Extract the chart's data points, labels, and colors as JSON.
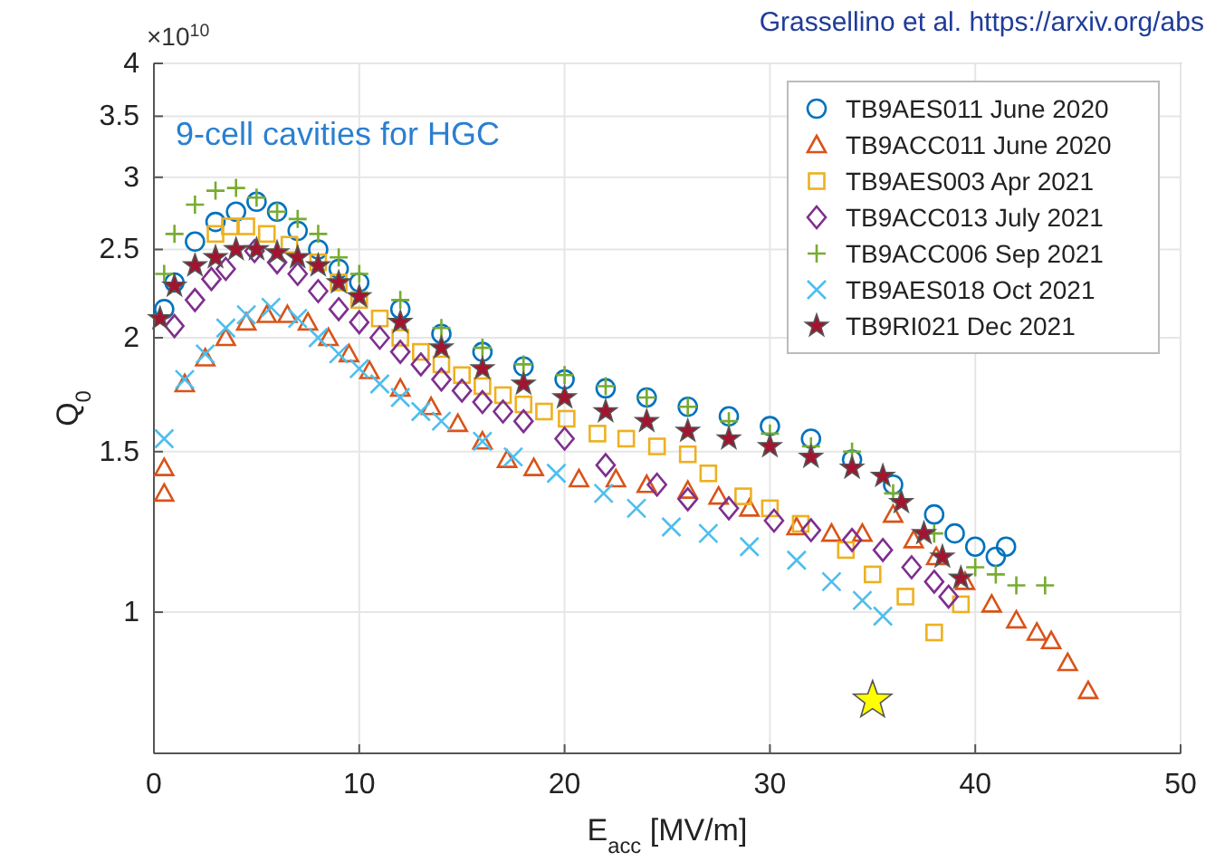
{
  "chart_data": {
    "type": "scatter",
    "xlabel": "E$_{acc}$ [MV/m]",
    "ylabel": "Q$_{0}$",
    "annotations": [
      "Grassellino et al. https://arxiv.org/abs",
      "9-cell cavities for HGC",
      "×10$^{10}$"
    ],
    "xlim": [
      0,
      50
    ],
    "xticks": [
      0,
      10,
      20,
      30,
      40,
      50
    ],
    "ylim": [
      0.7,
      4
    ],
    "yticks": [
      1,
      1.5,
      2,
      2.5,
      3,
      3.5,
      4
    ],
    "log": "y",
    "grid": true,
    "legend": "top right",
    "series": [
      {
        "name": "TB9AES011 June 2020",
        "color": "#0072bd",
        "marker": "circle",
        "x": [
          0.5,
          1,
          2,
          3,
          4,
          5,
          6,
          7,
          8,
          9,
          10,
          12,
          14,
          16,
          18,
          20,
          22,
          24,
          26,
          28,
          30,
          32,
          34,
          36,
          38,
          39,
          40,
          41,
          41.5
        ],
        "values": [
          2.15,
          2.3,
          2.55,
          2.68,
          2.75,
          2.82,
          2.75,
          2.62,
          2.5,
          2.38,
          2.3,
          2.15,
          2.02,
          1.93,
          1.86,
          1.8,
          1.76,
          1.72,
          1.68,
          1.64,
          1.6,
          1.55,
          1.47,
          1.38,
          1.28,
          1.22,
          1.18,
          1.15,
          1.18
        ]
      },
      {
        "name": "TB9ACC011 June 2020",
        "color": "#d95319",
        "marker": "triangle",
        "x": [
          0.5,
          0.5,
          1.5,
          2.5,
          3.5,
          4.5,
          5.5,
          6.5,
          7.5,
          8.5,
          9.5,
          10.5,
          12,
          13.5,
          14.8,
          16,
          17.2,
          18.5,
          20.7,
          22.5,
          24,
          26,
          27.5,
          29,
          31.3,
          33,
          34.5,
          36,
          37,
          38.1,
          39.5,
          40.8,
          42,
          43,
          43.7,
          44.5,
          45.5
        ],
        "values": [
          1.44,
          1.35,
          1.78,
          1.9,
          2,
          2.08,
          2.12,
          2.12,
          2.08,
          2,
          1.92,
          1.84,
          1.76,
          1.68,
          1.61,
          1.54,
          1.47,
          1.44,
          1.4,
          1.4,
          1.38,
          1.36,
          1.34,
          1.3,
          1.24,
          1.22,
          1.22,
          1.28,
          1.2,
          1.15,
          1.08,
          1.02,
          0.98,
          0.95,
          0.93,
          0.88,
          0.82
        ]
      },
      {
        "name": "TB9AES003 Apr 2021",
        "color": "#edb120",
        "marker": "square",
        "x": [
          3,
          3.7,
          4.5,
          5.5,
          6.6,
          8,
          9,
          10,
          11,
          12,
          13,
          14,
          15,
          16,
          17,
          18,
          19,
          20.1,
          21.6,
          23,
          24.5,
          26,
          27,
          28.7,
          30,
          31.5,
          33.7,
          35,
          36.6,
          38,
          39.3
        ],
        "values": [
          2.6,
          2.65,
          2.65,
          2.6,
          2.53,
          2.42,
          2.3,
          2.2,
          2.1,
          2,
          1.93,
          1.87,
          1.82,
          1.77,
          1.73,
          1.69,
          1.66,
          1.63,
          1.57,
          1.55,
          1.52,
          1.49,
          1.42,
          1.34,
          1.3,
          1.25,
          1.17,
          1.1,
          1.04,
          0.95,
          1.02
        ]
      },
      {
        "name": "TB9ACC013 July 2021",
        "color": "#7e2f8e",
        "marker": "diamond",
        "x": [
          1,
          2,
          2.8,
          3.5,
          4.9,
          6,
          7,
          8,
          9,
          10,
          11,
          12,
          13,
          14,
          15,
          16,
          17,
          18,
          20,
          22,
          24.5,
          26,
          28,
          30.2,
          32,
          34,
          35.5,
          36.9,
          38,
          38.7
        ],
        "values": [
          2.06,
          2.2,
          2.32,
          2.38,
          2.49,
          2.42,
          2.35,
          2.25,
          2.15,
          2.08,
          2,
          1.93,
          1.87,
          1.8,
          1.75,
          1.7,
          1.66,
          1.62,
          1.55,
          1.45,
          1.38,
          1.33,
          1.3,
          1.26,
          1.23,
          1.2,
          1.17,
          1.12,
          1.08,
          1.04
        ]
      },
      {
        "name": "TB9ACC006 Sep 2021",
        "color": "#77ac30",
        "marker": "cross",
        "x": [
          0.5,
          1,
          2,
          3,
          4,
          5,
          6,
          7,
          8,
          9,
          10,
          12,
          14,
          16,
          18,
          20,
          22,
          24,
          26,
          28,
          30,
          32,
          34,
          36,
          38,
          40,
          41,
          42,
          43.4
        ],
        "values": [
          2.35,
          2.6,
          2.8,
          2.9,
          2.92,
          2.85,
          2.75,
          2.7,
          2.6,
          2.45,
          2.35,
          2.2,
          2.05,
          1.95,
          1.87,
          1.82,
          1.77,
          1.72,
          1.68,
          1.62,
          1.57,
          1.52,
          1.5,
          1.35,
          1.22,
          1.12,
          1.1,
          1.07,
          1.07
        ]
      },
      {
        "name": "TB9AES018 Oct 2021",
        "color": "#4dbeee",
        "marker": "x",
        "x": [
          0.5,
          1.5,
          2.5,
          3.5,
          4.5,
          5.7,
          7,
          8,
          9,
          10,
          11,
          12,
          13,
          14,
          16,
          17.5,
          19.6,
          21.9,
          23.5,
          25.2,
          27,
          29,
          31.3,
          33,
          34.5,
          35.5
        ],
        "values": [
          1.55,
          1.8,
          1.92,
          2.05,
          2.12,
          2.16,
          2.1,
          2,
          1.92,
          1.85,
          1.78,
          1.72,
          1.66,
          1.62,
          1.54,
          1.48,
          1.42,
          1.35,
          1.3,
          1.24,
          1.22,
          1.18,
          1.14,
          1.08,
          1.03,
          0.99
        ]
      },
      {
        "name": "TB9RI021 Dec 2021",
        "color": "#a2142f",
        "marker": "star",
        "x": [
          0.3,
          1,
          2,
          3,
          4,
          5,
          6,
          7,
          8,
          9,
          10,
          12,
          14,
          16,
          18,
          20,
          22,
          24,
          26,
          28,
          30,
          32,
          34,
          35.5,
          36.4,
          37.5,
          38.4,
          39.3
        ],
        "values": [
          2.1,
          2.28,
          2.4,
          2.45,
          2.5,
          2.5,
          2.48,
          2.45,
          2.4,
          2.3,
          2.22,
          2.08,
          1.95,
          1.85,
          1.78,
          1.72,
          1.66,
          1.62,
          1.58,
          1.55,
          1.52,
          1.48,
          1.44,
          1.41,
          1.32,
          1.22,
          1.15,
          1.09
        ]
      },
      {
        "color": "#ffff00",
        "marker": "star",
        "x": [
          35
        ],
        "values": [
          0.8
        ]
      }
    ]
  }
}
